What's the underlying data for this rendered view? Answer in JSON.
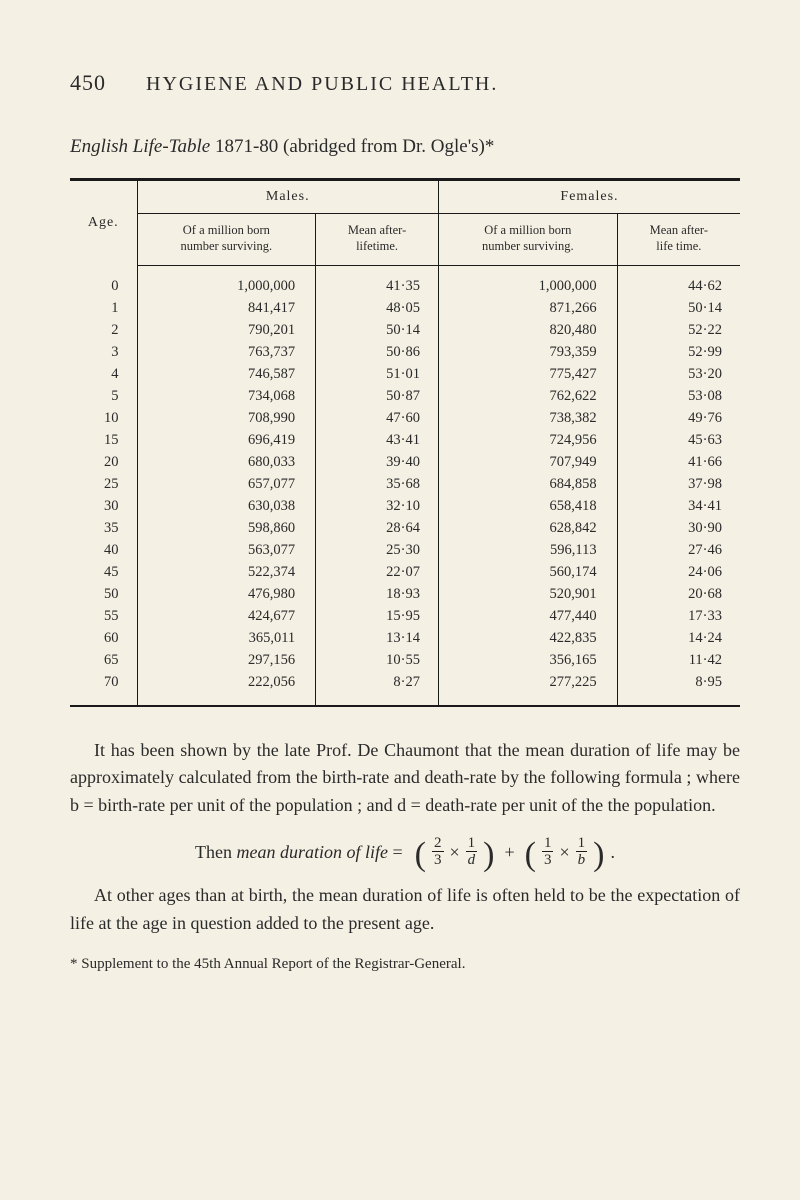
{
  "header": {
    "page_number": "450",
    "title": "HYGIENE AND PUBLIC HEALTH."
  },
  "subtitle": {
    "italic_part": "English Life-Table",
    "rest": " 1871-80 (abridged from Dr. Ogle's)*"
  },
  "table": {
    "top_headers": {
      "age": "Age.",
      "males": "Males.",
      "females": "Females."
    },
    "sub_headers": {
      "surv": "Of a million born\nnumber surviving.",
      "life_m": "Mean after-\nlifetime.",
      "life_f": "Mean after-\nlife time."
    },
    "rows": [
      {
        "age": "0",
        "ms": "1,000,000",
        "ml": "41·35",
        "fs": "1,000,000",
        "fl": "44·62"
      },
      {
        "age": "1",
        "ms": "841,417",
        "ml": "48·05",
        "fs": "871,266",
        "fl": "50·14"
      },
      {
        "age": "2",
        "ms": "790,201",
        "ml": "50·14",
        "fs": "820,480",
        "fl": "52·22"
      },
      {
        "age": "3",
        "ms": "763,737",
        "ml": "50·86",
        "fs": "793,359",
        "fl": "52·99"
      },
      {
        "age": "4",
        "ms": "746,587",
        "ml": "51·01",
        "fs": "775,427",
        "fl": "53·20"
      },
      {
        "age": "5",
        "ms": "734,068",
        "ml": "50·87",
        "fs": "762,622",
        "fl": "53·08"
      },
      {
        "age": "10",
        "ms": "708,990",
        "ml": "47·60",
        "fs": "738,382",
        "fl": "49·76"
      },
      {
        "age": "15",
        "ms": "696,419",
        "ml": "43·41",
        "fs": "724,956",
        "fl": "45·63"
      },
      {
        "age": "20",
        "ms": "680,033",
        "ml": "39·40",
        "fs": "707,949",
        "fl": "41·66"
      },
      {
        "age": "25",
        "ms": "657,077",
        "ml": "35·68",
        "fs": "684,858",
        "fl": "37·98"
      },
      {
        "age": "30",
        "ms": "630,038",
        "ml": "32·10",
        "fs": "658,418",
        "fl": "34·41"
      },
      {
        "age": "35",
        "ms": "598,860",
        "ml": "28·64",
        "fs": "628,842",
        "fl": "30·90"
      },
      {
        "age": "40",
        "ms": "563,077",
        "ml": "25·30",
        "fs": "596,113",
        "fl": "27·46"
      },
      {
        "age": "45",
        "ms": "522,374",
        "ml": "22·07",
        "fs": "560,174",
        "fl": "24·06"
      },
      {
        "age": "50",
        "ms": "476,980",
        "ml": "18·93",
        "fs": "520,901",
        "fl": "20·68"
      },
      {
        "age": "55",
        "ms": "424,677",
        "ml": "15·95",
        "fs": "477,440",
        "fl": "17·33"
      },
      {
        "age": "60",
        "ms": "365,011",
        "ml": "13·14",
        "fs": "422,835",
        "fl": "14·24"
      },
      {
        "age": "65",
        "ms": "297,156",
        "ml": "10·55",
        "fs": "356,165",
        "fl": "11·42"
      },
      {
        "age": "70",
        "ms": "222,056",
        "ml": "8·27",
        "fs": "277,225",
        "fl": "8·95"
      }
    ]
  },
  "paragraphs": {
    "p1": "It has been shown by the late Prof. De Chaumont that the mean duration of life may be approximately calculated from the birth-rate and death-rate by the following formula ; where b = birth-rate per unit of the population ; and d = death-rate per unit of the the population.",
    "formula_lead": "Then ",
    "formula_italic": "mean duration of life",
    "formula_eq": " = ",
    "p2": "At other ages than at birth, the mean duration of life is often held to be the expectation of life at the age in question added to the present age.",
    "footnote": "* Supplement to the 45th Annual Report of the Registrar-General."
  },
  "formula": {
    "f1n": "2",
    "f1d": "3",
    "f2n": "1",
    "f2d": "d",
    "plus": "+",
    "times": "×",
    "f3n": "1",
    "f3d": "3",
    "f4n": "1",
    "f4d": "b",
    "dot": "."
  },
  "style": {
    "background_color": "#f4f0e4",
    "text_color": "#2a2a2a",
    "rule_color": "#1a1a1a",
    "body_fontsize": 18,
    "table_fontsize": 14.5
  }
}
